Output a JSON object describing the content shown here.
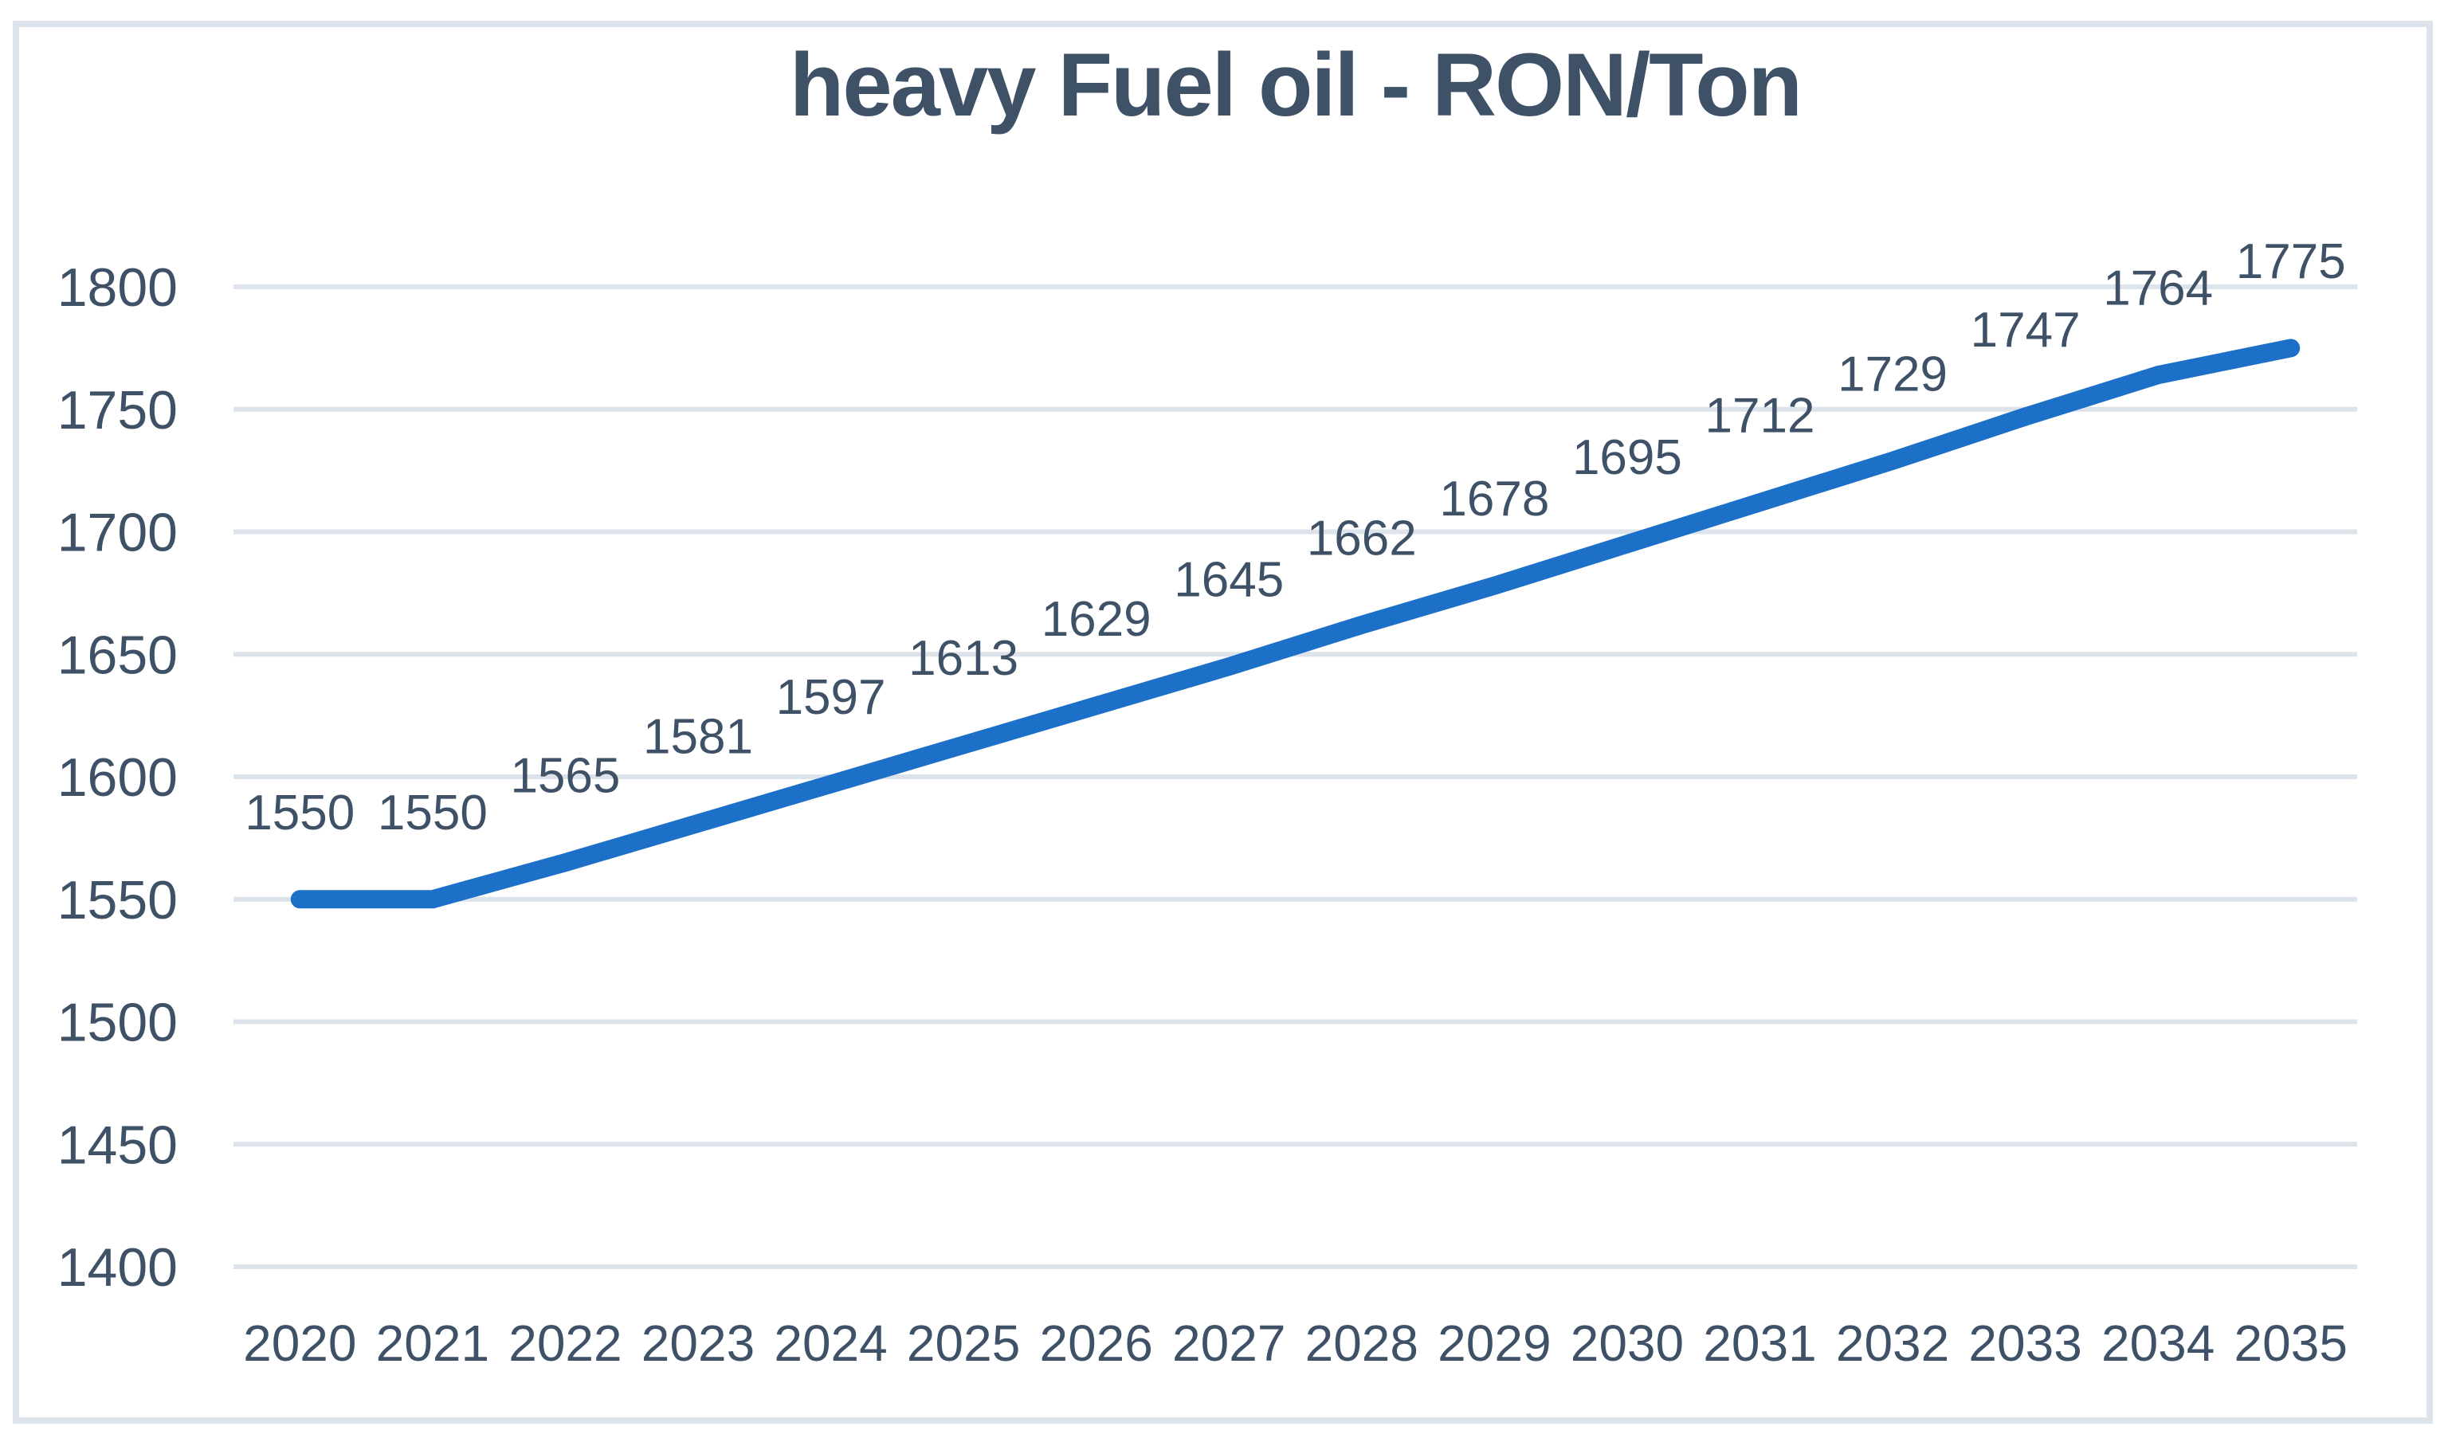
{
  "chart_data": {
    "type": "line",
    "title": "heavy Fuel oil - RON/Ton",
    "categories": [
      "2020",
      "2021",
      "2022",
      "2023",
      "2024",
      "2025",
      "2026",
      "2027",
      "2028",
      "2029",
      "2030",
      "2031",
      "2032",
      "2033",
      "2034",
      "2035"
    ],
    "series": [
      {
        "name": "heavy Fuel oil",
        "values": [
          1550,
          1550,
          1565,
          1581,
          1597,
          1613,
          1629,
          1645,
          1662,
          1678,
          1695,
          1712,
          1729,
          1747,
          1764,
          1775
        ]
      }
    ],
    "data_labels": [
      "1550",
      "1550",
      "1565",
      "1581",
      "1597",
      "1613",
      "1629",
      "1645",
      "1662",
      "1678",
      "1695",
      "1712",
      "1729",
      "1747",
      "1764",
      "1775"
    ],
    "xlabel": "",
    "ylabel": "",
    "ylim": [
      1400,
      1800
    ],
    "ytick_step": 50,
    "y_ticks": [
      "1800",
      "1750",
      "1700",
      "1650",
      "1600",
      "1550",
      "1500",
      "1450",
      "1400"
    ],
    "grid": "horizontal",
    "legend": "none",
    "colors": {
      "line": "#1d70c8",
      "text": "#3e5166",
      "gridline": "#dde3ea",
      "border": "#dde3ea",
      "background": "#ffffff"
    }
  }
}
